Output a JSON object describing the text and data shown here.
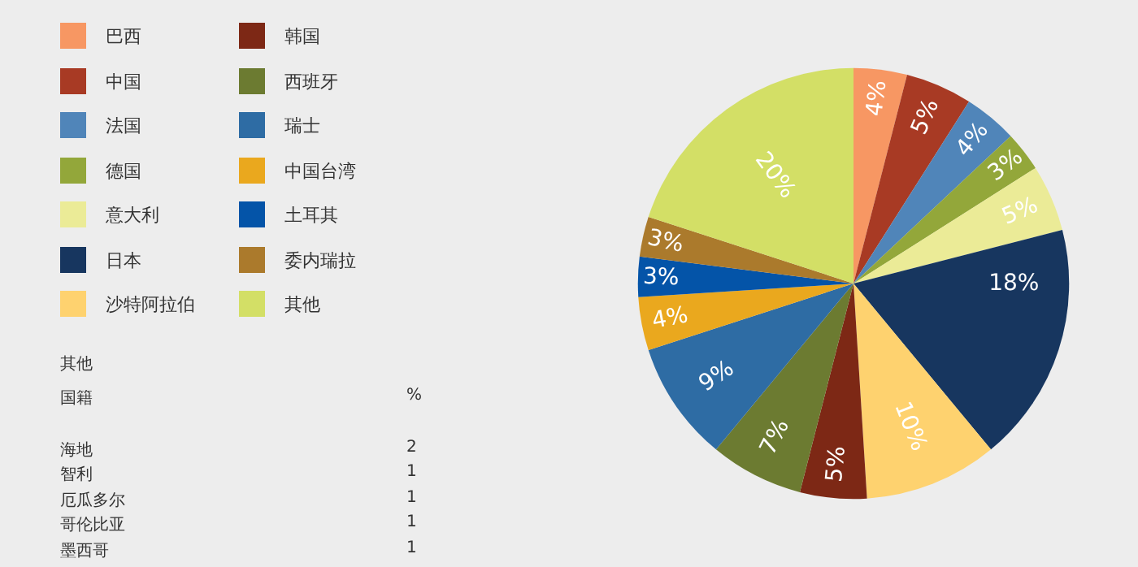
{
  "chart_data": {
    "type": "pie",
    "categories": [
      "巴西",
      "中国",
      "法国",
      "德国",
      "意大利",
      "日本",
      "沙特阿拉伯",
      "韩国",
      "西班牙",
      "瑞士",
      "中国台湾",
      "土耳其",
      "委内瑞拉",
      "其他"
    ],
    "values": [
      4,
      5,
      4,
      3,
      5,
      18,
      10,
      5,
      7,
      9,
      4,
      3,
      3,
      20
    ],
    "value_labels": [
      "4%",
      "5%",
      "4%",
      "3%",
      "5%",
      "18%",
      "10%",
      "5%",
      "7%",
      "9%",
      "4%",
      "3%",
      "3%",
      "20%"
    ],
    "colors": [
      "#f79763",
      "#a83a24",
      "#5085b9",
      "#93a73a",
      "#ebeb97",
      "#17365f",
      "#fed26f",
      "#7d2815",
      "#6c7b31",
      "#2e6ca4",
      "#eaa81e",
      "#0454a8",
      "#ab7a2c",
      "#d3df66"
    ],
    "legend": "left",
    "annotations": [
      "其他",
      "国籍",
      "%",
      "海地",
      "2",
      "智利",
      "1",
      "厄瓜多尔",
      "1",
      "哥伦比亚",
      "1",
      "墨西哥",
      "1"
    ]
  }
}
